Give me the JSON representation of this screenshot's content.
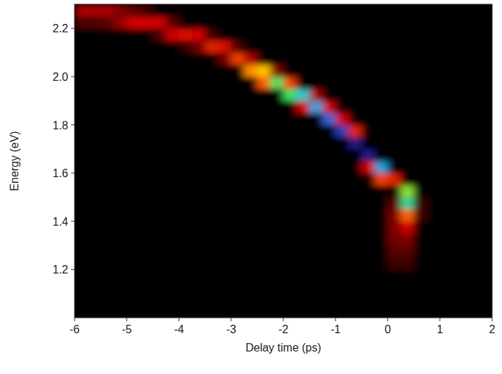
{
  "chart_data": {
    "type": "heatmap",
    "x_label": "Delay time (ps)",
    "y_label": "Energy (eV)",
    "xlim": [
      -6,
      2
    ],
    "ylim": [
      1.0,
      2.3
    ],
    "xticks": [
      -6,
      -5,
      -4,
      -3,
      -2,
      -1,
      0,
      1,
      2
    ],
    "yticks": [
      1.2,
      1.4,
      1.6,
      1.8,
      {
        "value": 2.0,
        "label": "2.0"
      },
      2.2
    ],
    "zlim": [
      0,
      100
    ],
    "x": [
      -5.875,
      -5.625,
      -5.375,
      -5.125,
      -4.875,
      -4.625,
      -4.375,
      -4.125,
      -3.875,
      -3.625,
      -3.375,
      -3.125,
      -2.875,
      -2.625,
      -2.375,
      -2.125,
      -1.875,
      -1.625,
      -1.375,
      -1.125,
      -0.875,
      -0.625,
      -0.375,
      -0.125,
      0.125,
      0.375,
      0.625,
      0.875,
      1.125,
      1.375,
      1.625,
      1.875
    ],
    "y": [
      1.025,
      1.075,
      1.125,
      1.175,
      1.225,
      1.275,
      1.325,
      1.375,
      1.425,
      1.475,
      1.525,
      1.575,
      1.625,
      1.675,
      1.725,
      1.775,
      1.825,
      1.875,
      1.925,
      1.975,
      2.025,
      2.075,
      2.125,
      2.175,
      2.225,
      2.275
    ],
    "cells": [
      [
        0,
        0,
        0,
        0,
        0,
        0,
        0,
        0,
        0,
        0,
        0,
        0,
        0,
        0,
        0,
        0,
        0,
        0,
        0,
        0,
        0,
        0,
        0,
        0,
        0,
        0,
        0,
        0,
        0,
        0,
        0,
        0
      ],
      [
        0,
        0,
        0,
        0,
        0,
        0,
        0,
        0,
        0,
        0,
        0,
        0,
        0,
        0,
        0,
        0,
        0,
        0,
        0,
        0,
        0,
        0,
        0,
        0,
        0,
        0,
        0,
        0,
        0,
        0,
        0,
        0
      ],
      [
        0,
        0,
        0,
        0,
        0,
        0,
        0,
        0,
        0,
        0,
        0,
        0,
        0,
        0,
        0,
        0,
        0,
        0,
        0,
        0,
        0,
        0,
        0,
        0,
        0,
        0,
        0,
        0,
        0,
        0,
        0,
        0
      ],
      [
        0,
        0,
        0,
        0,
        0,
        0,
        0,
        0,
        0,
        0,
        0,
        0,
        0,
        0,
        0,
        0,
        0,
        0,
        0,
        0,
        0,
        0,
        0,
        0,
        0,
        0,
        0,
        0,
        0,
        0,
        0,
        0
      ],
      [
        0,
        0,
        0,
        0,
        0,
        0,
        0,
        0,
        0,
        0,
        0,
        0,
        0,
        0,
        0,
        0,
        0,
        0,
        0,
        0,
        0,
        0,
        0,
        0,
        10,
        10,
        0,
        0,
        0,
        0,
        0,
        0
      ],
      [
        0,
        0,
        0,
        0,
        0,
        0,
        0,
        0,
        0,
        0,
        0,
        0,
        0,
        0,
        0,
        0,
        0,
        0,
        0,
        0,
        0,
        0,
        0,
        0,
        15,
        15,
        0,
        0,
        0,
        0,
        0,
        0
      ],
      [
        0,
        0,
        0,
        0,
        0,
        0,
        0,
        0,
        0,
        0,
        0,
        0,
        0,
        0,
        0,
        0,
        0,
        0,
        0,
        0,
        0,
        0,
        0,
        0,
        18,
        20,
        0,
        0,
        0,
        0,
        0,
        0
      ],
      [
        0,
        0,
        0,
        0,
        0,
        0,
        0,
        0,
        0,
        0,
        0,
        0,
        0,
        0,
        0,
        0,
        0,
        0,
        0,
        0,
        0,
        0,
        0,
        0,
        20,
        30,
        0,
        0,
        0,
        0,
        0,
        0
      ],
      [
        0,
        0,
        0,
        0,
        0,
        0,
        0,
        0,
        0,
        0,
        0,
        0,
        0,
        0,
        0,
        0,
        0,
        0,
        0,
        0,
        0,
        0,
        0,
        0,
        20,
        45,
        10,
        0,
        0,
        0,
        0,
        0
      ],
      [
        0,
        0,
        0,
        0,
        0,
        0,
        0,
        0,
        0,
        0,
        0,
        0,
        0,
        0,
        0,
        0,
        0,
        0,
        0,
        0,
        0,
        0,
        0,
        0,
        15,
        75,
        10,
        0,
        0,
        0,
        0,
        0
      ],
      [
        0,
        0,
        0,
        0,
        0,
        0,
        0,
        0,
        0,
        0,
        0,
        0,
        0,
        0,
        0,
        0,
        0,
        0,
        0,
        0,
        0,
        0,
        0,
        0,
        0,
        65,
        0,
        0,
        0,
        0,
        0,
        0
      ],
      [
        0,
        0,
        0,
        0,
        0,
        0,
        0,
        0,
        0,
        0,
        0,
        0,
        0,
        0,
        0,
        0,
        0,
        0,
        0,
        0,
        0,
        0,
        0,
        40,
        35,
        0,
        0,
        0,
        0,
        0,
        0,
        0
      ],
      [
        0,
        0,
        0,
        0,
        0,
        0,
        0,
        0,
        0,
        0,
        0,
        0,
        0,
        0,
        0,
        0,
        0,
        0,
        0,
        0,
        0,
        0,
        30,
        85,
        0,
        0,
        0,
        0,
        0,
        0,
        0,
        0
      ],
      [
        0,
        0,
        0,
        0,
        0,
        0,
        0,
        0,
        0,
        0,
        0,
        0,
        0,
        0,
        0,
        0,
        0,
        0,
        0,
        0,
        0,
        0,
        100,
        0,
        0,
        0,
        0,
        0,
        0,
        0,
        0,
        0
      ],
      [
        0,
        0,
        0,
        0,
        0,
        0,
        0,
        0,
        0,
        0,
        0,
        0,
        0,
        0,
        0,
        0,
        0,
        0,
        0,
        0,
        0,
        100,
        0,
        0,
        0,
        0,
        0,
        0,
        0,
        0,
        0,
        0
      ],
      [
        0,
        0,
        0,
        0,
        0,
        0,
        0,
        0,
        0,
        0,
        0,
        0,
        0,
        0,
        0,
        0,
        0,
        0,
        0,
        0,
        95,
        35,
        0,
        0,
        0,
        0,
        0,
        0,
        0,
        0,
        0,
        0
      ],
      [
        0,
        0,
        0,
        0,
        0,
        0,
        0,
        0,
        0,
        0,
        0,
        0,
        0,
        0,
        0,
        0,
        0,
        0,
        0,
        90,
        30,
        0,
        0,
        0,
        0,
        0,
        0,
        0,
        0,
        0,
        0,
        0
      ],
      [
        0,
        0,
        0,
        0,
        0,
        0,
        0,
        0,
        0,
        0,
        0,
        0,
        0,
        0,
        0,
        0,
        0,
        30,
        85,
        30,
        0,
        0,
        0,
        0,
        0,
        0,
        0,
        0,
        0,
        0,
        0,
        0
      ],
      [
        0,
        0,
        0,
        0,
        0,
        0,
        0,
        0,
        0,
        0,
        0,
        0,
        0,
        0,
        0,
        0,
        70,
        80,
        25,
        0,
        0,
        0,
        0,
        0,
        0,
        0,
        0,
        0,
        0,
        0,
        0,
        0
      ],
      [
        0,
        0,
        0,
        0,
        0,
        0,
        0,
        0,
        0,
        0,
        0,
        0,
        0,
        0,
        45,
        70,
        40,
        0,
        0,
        0,
        0,
        0,
        0,
        0,
        0,
        0,
        0,
        0,
        0,
        0,
        0,
        0
      ],
      [
        0,
        0,
        0,
        0,
        0,
        0,
        0,
        0,
        0,
        0,
        0,
        0,
        0,
        50,
        55,
        20,
        0,
        0,
        0,
        0,
        0,
        0,
        0,
        0,
        0,
        0,
        0,
        0,
        0,
        0,
        0,
        0
      ],
      [
        0,
        0,
        0,
        0,
        0,
        0,
        0,
        0,
        0,
        0,
        0,
        18,
        40,
        25,
        0,
        0,
        0,
        0,
        0,
        0,
        0,
        0,
        0,
        0,
        0,
        0,
        0,
        0,
        0,
        0,
        0,
        0
      ],
      [
        0,
        0,
        0,
        0,
        0,
        0,
        0,
        0,
        8,
        18,
        35,
        32,
        12,
        0,
        0,
        0,
        0,
        0,
        0,
        0,
        0,
        0,
        0,
        0,
        0,
        0,
        0,
        0,
        0,
        0,
        0,
        0
      ],
      [
        0,
        0,
        0,
        0,
        0,
        0,
        12,
        30,
        32,
        30,
        10,
        0,
        0,
        0,
        0,
        0,
        0,
        0,
        0,
        0,
        0,
        0,
        0,
        0,
        0,
        0,
        0,
        0,
        0,
        0,
        0,
        0
      ],
      [
        12,
        12,
        15,
        22,
        30,
        30,
        30,
        15,
        0,
        0,
        0,
        0,
        0,
        0,
        0,
        0,
        0,
        0,
        0,
        0,
        0,
        0,
        0,
        0,
        0,
        0,
        0,
        0,
        0,
        0,
        0,
        0
      ],
      [
        25,
        25,
        25,
        20,
        15,
        10,
        0,
        0,
        0,
        0,
        0,
        0,
        0,
        0,
        0,
        0,
        0,
        0,
        0,
        0,
        0,
        0,
        0,
        0,
        0,
        0,
        0,
        0,
        0,
        0,
        0,
        0
      ]
    ]
  }
}
